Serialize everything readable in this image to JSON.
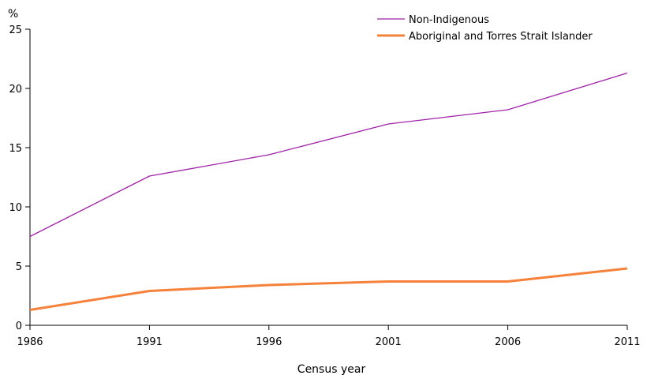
{
  "chart_data": {
    "type": "line",
    "title": "",
    "xlabel": "Census year",
    "ylabel": "%",
    "x": [
      "1986",
      "1991",
      "1996",
      "2001",
      "2006",
      "2011"
    ],
    "ylim": [
      0,
      25
    ],
    "yticks": [
      "0",
      "5",
      "10",
      "15",
      "20",
      "25"
    ],
    "grid": false,
    "legend_position": "top-right",
    "series": [
      {
        "name": "Non-Indigenous",
        "values": [
          7.5,
          12.6,
          14.4,
          17.0,
          18.2,
          21.3
        ],
        "color": "#a020a8"
      },
      {
        "name": "Aboriginal and Torres Strait Islander",
        "values": [
          1.3,
          2.9,
          3.4,
          3.7,
          3.7,
          4.8
        ],
        "color": "#f5813a"
      }
    ]
  }
}
